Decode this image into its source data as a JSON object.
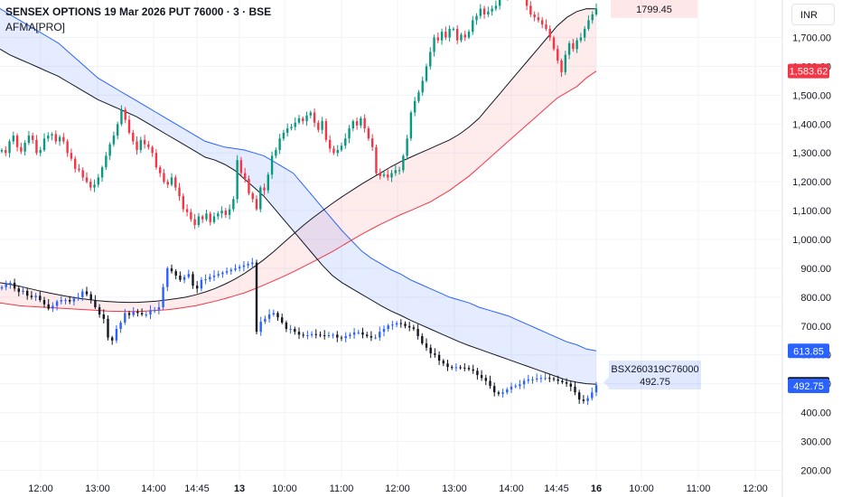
{
  "header": {
    "title": "SENSEX OPTIONS 19 Mar 2026 PUT 76000 · 3 · BSE",
    "indicator": "AFMA[PRO]"
  },
  "currency_button": "INR",
  "colors": {
    "up": "#26a69a",
    "down": "#ef5350",
    "put_up": "#089981",
    "put_down": "#f23645",
    "call_up": "#2962ff",
    "call_down": "#131722",
    "blue_band": "#2962ff",
    "red_band": "#f23645",
    "mid_line": "#131722"
  },
  "chart_data": {
    "type": "candlestick",
    "y_axis": {
      "ticks": [
        "200.00",
        "300.00",
        "400.00",
        "500.00",
        "600.00",
        "700.00",
        "800.00",
        "900.00",
        "1,000.00",
        "1,100.00",
        "1,200.00",
        "1,300.00",
        "1,400.00",
        "1,500.00",
        "1,600.00",
        "1,700.00"
      ],
      "range": [
        170,
        1830
      ]
    },
    "x_axis": {
      "ticks": [
        "12:00",
        "13:00",
        "14:00",
        "14:45",
        "13",
        "10:00",
        "11:00",
        "12:00",
        "13:00",
        "14:00",
        "14:45",
        "16",
        "10:00",
        "11:00",
        "12:00"
      ],
      "bold_ticks": [
        "13",
        "16"
      ]
    },
    "price_labels": [
      {
        "text": "1799.45",
        "value": 1799.45,
        "style": "put-band-label"
      },
      {
        "text": "1,583.62",
        "value": 1583.62,
        "style": "red"
      },
      {
        "text": "613.85",
        "value": 613.85,
        "style": "blue"
      },
      {
        "text": "498.11",
        "value": 498.11,
        "style": "black"
      },
      {
        "text": "492.75",
        "value": 492.75,
        "style": "blue"
      }
    ],
    "call_label": {
      "symbol": "BSX260319C76000",
      "price": "492.75"
    },
    "series": [
      {
        "name": "SENSEX PUT 76000",
        "closes": [
          1310,
          1300,
          1340,
          1360,
          1320,
          1305,
          1335,
          1360,
          1345,
          1300,
          1310,
          1350,
          1360,
          1365,
          1340,
          1355,
          1340,
          1300,
          1280,
          1245,
          1240,
          1215,
          1200,
          1180,
          1190,
          1215,
          1250,
          1290,
          1330,
          1360,
          1400,
          1450,
          1415,
          1370,
          1340,
          1310,
          1345,
          1330,
          1320,
          1300,
          1250,
          1230,
          1200,
          1190,
          1215,
          1180,
          1150,
          1105,
          1095,
          1070,
          1050,
          1080,
          1070,
          1090,
          1060,
          1080,
          1090,
          1100,
          1085,
          1105,
          1140,
          1275,
          1230,
          1210,
          1160,
          1140,
          1105,
          1180,
          1170,
          1225,
          1290,
          1310,
          1350,
          1370,
          1385,
          1390,
          1405,
          1420,
          1410,
          1430,
          1440,
          1405,
          1380,
          1410,
          1345,
          1315,
          1300,
          1310,
          1325,
          1350,
          1385,
          1410,
          1395,
          1420,
          1385,
          1350,
          1320,
          1230,
          1220,
          1225,
          1215,
          1230,
          1240,
          1240,
          1290,
          1350,
          1440,
          1480,
          1510,
          1550,
          1600,
          1650,
          1700,
          1690,
          1720,
          1700,
          1730,
          1730,
          1690,
          1710,
          1700,
          1720,
          1760,
          1775,
          1800,
          1780,
          1790,
          1800,
          1810,
          1850,
          1860,
          1840,
          1850,
          1870,
          1850,
          1850,
          1810,
          1780,
          1770,
          1760,
          1745,
          1730,
          1700,
          1660,
          1620,
          1580,
          1640,
          1680,
          1660,
          1690,
          1700,
          1730,
          1760,
          1780,
          1800
        ]
      },
      {
        "name": "BSX260319C76000",
        "closes": [
          835,
          845,
          850,
          830,
          818,
          822,
          805,
          800,
          805,
          790,
          775,
          760,
          770,
          785,
          790,
          790,
          785,
          795,
          800,
          820,
          810,
          790,
          765,
          740,
          725,
          660,
          650,
          690,
          712,
          745,
          738,
          750,
          745,
          740,
          740,
          755,
          755,
          765,
          835,
          900,
          890,
          875,
          860,
          870,
          880,
          840,
          830,
          860,
          862,
          870,
          875,
          880,
          885,
          890,
          895,
          900,
          905,
          910,
          915,
          920,
          680,
          715,
          725,
          740,
          745,
          730,
          712,
          690,
          690,
          680,
          670,
          668,
          668,
          672,
          670,
          668,
          665,
          668,
          670,
          660,
          658,
          665,
          670,
          678,
          678,
          670,
          665,
          660,
          660,
          680,
          690,
          702,
          705,
          710,
          708,
          700,
          695,
          690,
          665,
          640,
          625,
          605,
          600,
          580,
          570,
          558,
          556,
          557,
          556,
          555,
          550,
          545,
          530,
          520,
          510,
          492,
          470,
          465,
          470,
          480,
          490,
          492,
          498,
          510,
          515,
          515,
          518,
          520,
          520,
          518,
          515,
          510,
          505,
          500,
          490,
          470,
          445,
          440,
          450,
          470,
          495
        ]
      }
    ],
    "indicators": [
      {
        "name": "AFMA[PRO] blue band upper",
        "values": [
          1800,
          1780,
          1760,
          1740,
          1720,
          1700,
          1680,
          1650,
          1620,
          1590,
          1560,
          1540,
          1520,
          1500,
          1480,
          1460,
          1440,
          1420,
          1400,
          1380,
          1360,
          1340,
          1330,
          1320,
          1315,
          1310,
          1300,
          1290,
          1270,
          1250,
          1230,
          1190,
          1150,
          1110,
          1070,
          1030,
          995,
          960,
          935,
          915,
          895,
          880,
          860,
          845,
          830,
          815,
          800,
          790,
          780,
          765,
          755,
          745,
          735,
          720,
          705,
          690,
          675,
          660,
          645,
          635,
          620,
          614
        ]
      },
      {
        "name": "AFMA[PRO] blue band lower",
        "values": [
          1660,
          1640,
          1625,
          1610,
          1595,
          1580,
          1565,
          1545,
          1525,
          1505,
          1485,
          1470,
          1455,
          1440,
          1425,
          1405,
          1385,
          1365,
          1345,
          1325,
          1305,
          1285,
          1275,
          1260,
          1240,
          1210,
          1180,
          1150,
          1110,
          1070,
          1030,
          990,
          950,
          910,
          875,
          850,
          830,
          810,
          790,
          770,
          752,
          737,
          720,
          705,
          690,
          675,
          660,
          645,
          632,
          620,
          608,
          596,
          584,
          572,
          560,
          548,
          536,
          524,
          512,
          505,
          500,
          498
        ]
      },
      {
        "name": "AFMA[PRO] red band lower",
        "values": [
          780,
          775,
          770,
          768,
          766,
          764,
          762,
          760,
          758,
          756,
          754,
          752,
          751,
          750,
          750,
          752,
          754,
          756,
          760,
          765,
          770,
          778,
          786,
          795,
          805,
          815,
          828,
          842,
          857,
          872,
          888,
          905,
          922,
          940,
          958,
          978,
          998,
          1018,
          1036,
          1054,
          1070,
          1086,
          1100,
          1115,
          1130,
          1150,
          1170,
          1195,
          1220,
          1250,
          1280,
          1310,
          1340,
          1370,
          1400,
          1430,
          1460,
          1490,
          1510,
          1530,
          1560,
          1583.62
        ]
      },
      {
        "name": "AFMA[PRO] red band upper",
        "values": [
          850,
          845,
          838,
          830,
          822,
          815,
          808,
          802,
          796,
          792,
          788,
          785,
          783,
          782,
          782,
          784,
          786,
          790,
          795,
          800,
          808,
          818,
          830,
          845,
          862,
          882,
          905,
          930,
          958,
          988,
          1018,
          1048,
          1075,
          1100,
          1125,
          1148,
          1170,
          1192,
          1212,
          1232,
          1252,
          1270,
          1285,
          1300,
          1315,
          1330,
          1345,
          1365,
          1390,
          1420,
          1460,
          1500,
          1540,
          1580,
          1620,
          1660,
          1700,
          1740,
          1770,
          1790,
          1800,
          1799.45
        ]
      }
    ]
  }
}
